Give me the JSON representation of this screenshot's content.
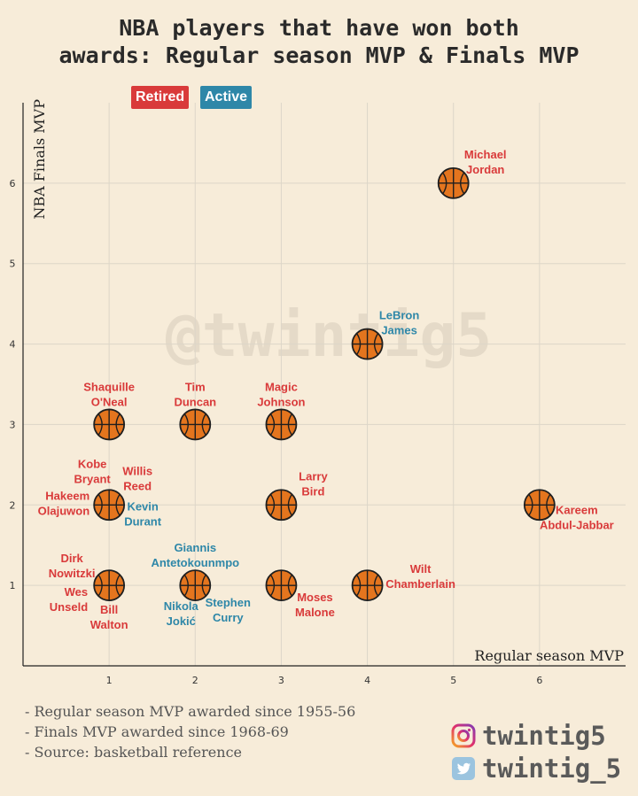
{
  "legend": {
    "retired": "Retired",
    "active": "Active"
  },
  "colors": {
    "retired": "#d93a3a",
    "active": "#2e87a8",
    "ball": "#e4751e",
    "background": "#f7ecd9"
  },
  "watermark": "@twintig5",
  "notes": [
    "- Regular season MVP awarded since 1955-56",
    "- Finals MVP awarded since 1968-69",
    "- Source: basketball reference"
  ],
  "social": {
    "instagram": {
      "icon": "instagram-icon",
      "handle": "twintig5"
    },
    "twitter": {
      "icon": "twitter-icon",
      "handle": "twintig_5"
    }
  },
  "chart_data": {
    "type": "scatter",
    "title": [
      "NBA players that have won both",
      "awards: Regular season MVP & Finals MVP"
    ],
    "xlabel": "Regular season MVP",
    "ylabel": "NBA Finals MVP",
    "xlim": [
      0,
      7
    ],
    "ylim": [
      0,
      7
    ],
    "xticks": [
      1,
      2,
      3,
      4,
      5,
      6
    ],
    "yticks": [
      1,
      2,
      3,
      4,
      5,
      6
    ],
    "grid": true,
    "marker": "basketball",
    "points": [
      {
        "x": 5,
        "y": 6,
        "labels": [
          {
            "text": [
              "Michael",
              "Jordan"
            ],
            "status": "retired",
            "pos": "upper-right"
          }
        ]
      },
      {
        "x": 4,
        "y": 4,
        "labels": [
          {
            "text": [
              "LeBron",
              "James"
            ],
            "status": "active",
            "pos": "upper-right"
          }
        ]
      },
      {
        "x": 1,
        "y": 3,
        "labels": [
          {
            "text": [
              "Shaquille",
              "O'Neal"
            ],
            "status": "retired",
            "pos": "above"
          }
        ]
      },
      {
        "x": 2,
        "y": 3,
        "labels": [
          {
            "text": [
              "Tim",
              "Duncan"
            ],
            "status": "retired",
            "pos": "above"
          }
        ]
      },
      {
        "x": 3,
        "y": 3,
        "labels": [
          {
            "text": [
              "Magic",
              "Johnson"
            ],
            "status": "retired",
            "pos": "above"
          }
        ]
      },
      {
        "x": 1,
        "y": 2,
        "labels": [
          {
            "text": [
              "Kobe",
              "Bryant"
            ],
            "status": "retired",
            "pos": "upper-left"
          },
          {
            "text": [
              "Willis",
              "Reed"
            ],
            "status": "retired",
            "pos": "upper-right"
          },
          {
            "text": [
              "Hakeem",
              "Olajuwon"
            ],
            "status": "retired",
            "pos": "left"
          },
          {
            "text": [
              "Kevin",
              "Durant"
            ],
            "status": "active",
            "pos": "lower-right"
          }
        ]
      },
      {
        "x": 3,
        "y": 2,
        "labels": [
          {
            "text": [
              "Larry",
              "Bird"
            ],
            "status": "retired",
            "pos": "upper-right"
          }
        ]
      },
      {
        "x": 6,
        "y": 2,
        "labels": [
          {
            "text": [
              "Kareem",
              "Abdul-Jabbar"
            ],
            "status": "retired",
            "pos": "lower-right"
          }
        ]
      },
      {
        "x": 1,
        "y": 1,
        "labels": [
          {
            "text": [
              "Dirk",
              "Nowitzki"
            ],
            "status": "retired",
            "pos": "upper-left"
          },
          {
            "text": [
              "Wes",
              "Unseld"
            ],
            "status": "retired",
            "pos": "left"
          },
          {
            "text": [
              "Bill",
              "Walton"
            ],
            "status": "retired",
            "pos": "below"
          }
        ]
      },
      {
        "x": 2,
        "y": 1,
        "labels": [
          {
            "text": [
              "Giannis",
              "Antetokounmpo"
            ],
            "status": "active",
            "pos": "above"
          },
          {
            "text": [
              "Nikola",
              "Jokić"
            ],
            "status": "active",
            "pos": "lower-left"
          },
          {
            "text": [
              "Stephen",
              "Curry"
            ],
            "status": "active",
            "pos": "lower-right"
          }
        ]
      },
      {
        "x": 3,
        "y": 1,
        "labels": [
          {
            "text": [
              "Moses",
              "Malone"
            ],
            "status": "retired",
            "pos": "lower-right"
          }
        ]
      },
      {
        "x": 4,
        "y": 1,
        "labels": [
          {
            "text": [
              "Wilt",
              "Chamberlain"
            ],
            "status": "retired",
            "pos": "upper-right"
          }
        ]
      }
    ]
  }
}
